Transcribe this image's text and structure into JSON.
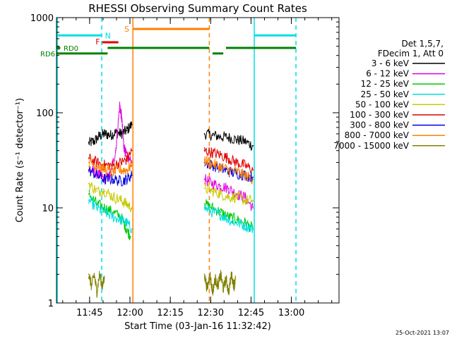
{
  "chart_data": {
    "type": "line",
    "title": "RHESSI Observing Summary Count Rates",
    "xlabel": "Start Time (03-Jan-16 11:32:42)",
    "ylabel": "Count Rate (s⁻¹ detector⁻¹)",
    "yscale": "log",
    "ylim": [
      1,
      1000
    ],
    "xlim_min": [
      0,
      105
    ],
    "y_ticks": [
      "1",
      "10",
      "100",
      "1000"
    ],
    "x_ticks": [
      {
        "label": "11:45",
        "min": 12.3
      },
      {
        "label": "12:00",
        "min": 27.3
      },
      {
        "label": "12:15",
        "min": 42.3
      },
      {
        "label": "12:30",
        "min": 57.3
      },
      {
        "label": "12:45",
        "min": 72.3
      },
      {
        "label": "13:00",
        "min": 87.3
      }
    ],
    "legend": {
      "placement": "right",
      "header": [
        "Det 1,5,7,",
        "FDecim 1, Att 0"
      ],
      "items": [
        {
          "label": "3 - 6 keV",
          "color": "#000000"
        },
        {
          "label": "6 - 12 keV",
          "color": "#e000e0"
        },
        {
          "label": "12 - 25 keV",
          "color": "#00c800"
        },
        {
          "label": "25 - 50 keV",
          "color": "#00e0e0"
        },
        {
          "label": "50 - 100 keV",
          "color": "#c8c800"
        },
        {
          "label": "100 - 300 keV",
          "color": "#e00000"
        },
        {
          "label": "300 - 800 keV",
          "color": "#0000e0"
        },
        {
          "label": "800 - 7000 keV",
          "color": "#ff8000"
        },
        {
          "label": "7000 - 15000 keV",
          "color": "#808000"
        }
      ]
    },
    "series": [
      {
        "name": "3 - 6 keV",
        "color": "#000000",
        "segments": [
          {
            "x": [
              12.0,
              14.0,
              16.0,
              18.0,
              20.0,
              22.0,
              24.0,
              26.0,
              28.0
            ],
            "y": [
              48,
              50,
              57,
              60,
              58,
              62,
              60,
              65,
              75
            ]
          },
          {
            "x": [
              55.0,
              58.0,
              61.0,
              64.0,
              67.0,
              70.0,
              73.0
            ],
            "y": [
              60,
              58,
              56,
              55,
              52,
              50,
              45
            ]
          }
        ]
      },
      {
        "name": "6 - 12 keV",
        "color": "#e000e0",
        "segments": [
          {
            "x": [
              12.0,
              14.0,
              16.0,
              18.0,
              20.0,
              22.0,
              23.5,
              24.2,
              25.0,
              26.0,
              28.0
            ],
            "y": [
              25,
              24,
              22,
              20,
              22,
              40,
              120,
              90,
              45,
              35,
              30
            ]
          },
          {
            "x": [
              55.0,
              58.0,
              61.0,
              64.0,
              67.0,
              70.0,
              73.0
            ],
            "y": [
              20,
              18,
              17,
              16,
              14,
              13,
              10
            ]
          }
        ]
      },
      {
        "name": "12 - 25 keV",
        "color": "#00c800",
        "segments": [
          {
            "x": [
              12.0,
              15.0,
              18.0,
              21.0,
              24.0,
              26.0,
              27.5
            ],
            "y": [
              14,
              11,
              10,
              9,
              8,
              6,
              5
            ]
          },
          {
            "x": [
              55.0,
              58.0,
              61.0,
              64.0,
              67.0,
              70.0,
              73.0
            ],
            "y": [
              11,
              10,
              9,
              8,
              7.5,
              7,
              6
            ]
          }
        ]
      },
      {
        "name": "25 - 50 keV",
        "color": "#00e0e0",
        "segments": [
          {
            "x": [
              12.0,
              15.0,
              18.0,
              21.0,
              24.0,
              26.0,
              28.0
            ],
            "y": [
              12,
              10,
              9,
              8,
              7.5,
              7,
              6
            ]
          },
          {
            "x": [
              55.0,
              58.0,
              61.0,
              64.0,
              67.0,
              70.0,
              73.0
            ],
            "y": [
              10,
              9,
              8.5,
              7.5,
              7,
              6.5,
              6
            ]
          }
        ]
      },
      {
        "name": "50 - 100 keV",
        "color": "#c8c800",
        "segments": [
          {
            "x": [
              12.0,
              15.0,
              18.0,
              21.0,
              24.0,
              26.0,
              28.0
            ],
            "y": [
              18,
              15,
              15,
              13,
              12,
              11,
              10
            ]
          },
          {
            "x": [
              55.0,
              58.0,
              61.0,
              64.0,
              67.0,
              70.0,
              73.0
            ],
            "y": [
              16,
              15,
              14,
              13,
              13,
              12,
              12
            ]
          }
        ]
      },
      {
        "name": "100 - 300 keV",
        "color": "#e00000",
        "segments": [
          {
            "x": [
              12.0,
              15.0,
              18.0,
              21.0,
              24.0,
              26.0,
              28.0
            ],
            "y": [
              33,
              30,
              28,
              28,
              30,
              32,
              40
            ]
          },
          {
            "x": [
              55.0,
              58.0,
              61.0,
              64.0,
              67.0,
              70.0,
              73.0
            ],
            "y": [
              40,
              38,
              36,
              33,
              30,
              28,
              25
            ]
          }
        ]
      },
      {
        "name": "300 - 800 keV",
        "color": "#0000e0",
        "segments": [
          {
            "x": [
              12.0,
              15.0,
              18.0,
              21.0,
              24.0,
              26.0,
              28.0
            ],
            "y": [
              25,
              22,
              20,
              20,
              19,
              20,
              22
            ]
          },
          {
            "x": [
              55.0,
              58.0,
              61.0,
              64.0,
              67.0,
              70.0,
              73.0
            ],
            "y": [
              30,
              28,
              26,
              24,
              23,
              22,
              21
            ]
          }
        ]
      },
      {
        "name": "800 - 7000 keV",
        "color": "#ff8000",
        "segments": [
          {
            "x": [
              12.0,
              15.0,
              18.0,
              21.0,
              24.0,
              26.0,
              28.0
            ],
            "y": [
              30,
              28,
              25,
              24,
              25,
              25,
              28
            ]
          },
          {
            "x": [
              55.0,
              58.0,
              61.0,
              64.0,
              67.0,
              70.0,
              73.0
            ],
            "y": [
              32,
              29,
              27,
              25,
              24,
              22,
              20
            ]
          }
        ]
      },
      {
        "name": "7000 - 15000 keV",
        "color": "#808000",
        "segments": [
          {
            "x": [
              12.0,
              13.0,
              14.0,
              15.0,
              16.0,
              17.0,
              17.8
            ],
            "y": [
              2.0,
              1.5,
              2.0,
              1.3,
              2.0,
              1.5,
              1.8
            ]
          },
          {
            "x": [
              55.0,
              56.0,
              57.0,
              58.0,
              59.0,
              60.0,
              61.0,
              62.0,
              63.0,
              64.0,
              65.0,
              66.0,
              66.5
            ],
            "y": [
              2.0,
              1.4,
              2.0,
              1.3,
              1.8,
              1.5,
              2.0,
              1.4,
              1.8,
              1.3,
              2.0,
              1.5,
              1.8
            ]
          }
        ]
      }
    ],
    "vlines": [
      {
        "x": 0.3,
        "color": "#00e0e0",
        "style": "solid"
      },
      {
        "x": 16.8,
        "color": "#00e0e0",
        "style": "dashed"
      },
      {
        "x": 28.4,
        "color": "#ff8000",
        "style": "solid"
      },
      {
        "x": 56.8,
        "color": "#ff8000",
        "style": "dashed"
      },
      {
        "x": 73.5,
        "color": "#00e0e0",
        "style": "solid"
      },
      {
        "x": 89.0,
        "color": "#00e0e0",
        "style": "dashed"
      }
    ],
    "flags": [
      {
        "label": "N",
        "color": "#00e0e0",
        "y": 650,
        "segments": [
          [
            0.0,
            16.8
          ],
          [
            73.5,
            89.0
          ]
        ]
      },
      {
        "label": "S",
        "color": "#ff8000",
        "y": 760,
        "segments": [
          [
            28.4,
            56.8
          ]
        ]
      },
      {
        "label": "F",
        "color": "#e00000",
        "y": 550,
        "segments": [
          [
            17.0,
            23.0
          ]
        ]
      },
      {
        "label": "RD0",
        "color": "#008000",
        "y": 480,
        "segments": [
          [
            19.0,
            56.8
          ],
          [
            63.0,
            89.0
          ]
        ]
      },
      {
        "label": "RD6",
        "color": "#008000",
        "y": 420,
        "segments": [
          [
            0.0,
            19.0
          ],
          [
            58.0,
            62.0
          ]
        ]
      }
    ],
    "footer": "25-Oct-2021 13:07"
  }
}
